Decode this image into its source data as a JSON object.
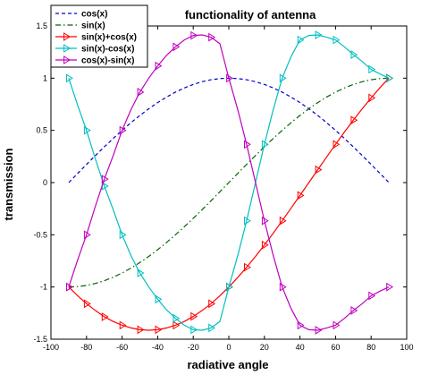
{
  "chart_data": {
    "type": "line",
    "title": "functionality of antenna",
    "xlabel": "radiative angle",
    "ylabel": "transmission",
    "xlim": [
      -100,
      100
    ],
    "ylim": [
      -1.5,
      1.5
    ],
    "xticks": [
      "-100",
      "-80",
      "-60",
      "-40",
      "-20",
      "0",
      "20",
      "40",
      "60",
      "80",
      "100"
    ],
    "yticks": [
      "1.5",
      "1",
      "0.5",
      "0",
      "-0.5",
      "-1",
      "-1.5"
    ],
    "xtick_values": [
      -100,
      -80,
      -60,
      -40,
      -20,
      0,
      20,
      40,
      60,
      80,
      100
    ],
    "ytick_values": [
      1.5,
      1,
      0.5,
      0,
      -0.5,
      -1,
      -1.5
    ],
    "grid": false,
    "legend_position": "top-left",
    "x": [
      -90,
      -85,
      -80,
      -75,
      -70,
      -65,
      -60,
      -55,
      -50,
      -45,
      -40,
      -35,
      -30,
      -25,
      -20,
      -15,
      -10,
      -5,
      0,
      5,
      10,
      15,
      20,
      25,
      30,
      35,
      40,
      45,
      50,
      55,
      60,
      65,
      70,
      75,
      80,
      85,
      90
    ],
    "series": [
      {
        "name": "cos(x)",
        "color": "#0000cc",
        "style": "dashed",
        "marker": "none",
        "values": [
          0.0,
          0.087,
          0.174,
          0.259,
          0.342,
          0.423,
          0.5,
          0.574,
          0.643,
          0.707,
          0.766,
          0.819,
          0.866,
          0.906,
          0.94,
          0.966,
          0.985,
          0.996,
          1.0,
          0.996,
          0.985,
          0.966,
          0.94,
          0.906,
          0.866,
          0.819,
          0.766,
          0.707,
          0.643,
          0.574,
          0.5,
          0.423,
          0.342,
          0.259,
          0.174,
          0.087,
          0.0
        ]
      },
      {
        "name": "sin(x)",
        "color": "#006400",
        "style": "dashdot",
        "marker": "none",
        "values": [
          -1.0,
          -0.996,
          -0.985,
          -0.966,
          -0.94,
          -0.906,
          -0.866,
          -0.819,
          -0.766,
          -0.707,
          -0.643,
          -0.574,
          -0.5,
          -0.423,
          -0.342,
          -0.259,
          -0.174,
          -0.087,
          0.0,
          0.087,
          0.174,
          0.259,
          0.342,
          0.423,
          0.5,
          0.574,
          0.643,
          0.707,
          0.766,
          0.819,
          0.866,
          0.906,
          0.94,
          0.966,
          0.985,
          0.996,
          1.0
        ]
      },
      {
        "name": "sin(x)+cos(x)",
        "color": "#ff0000",
        "style": "solid",
        "marker": "triangle-right",
        "values": [
          -1.0,
          -1.084,
          -1.16,
          -1.225,
          -1.286,
          -1.33,
          -1.366,
          -1.392,
          -1.409,
          -1.414,
          -1.409,
          -1.392,
          -1.366,
          -1.33,
          -1.282,
          -1.225,
          -1.16,
          -1.084,
          -1.0,
          -0.909,
          -0.811,
          -0.707,
          -0.598,
          -0.484,
          -0.366,
          -0.245,
          -0.123,
          0.0,
          0.123,
          0.245,
          0.366,
          0.484,
          0.598,
          0.707,
          0.811,
          0.909,
          1.0
        ]
      },
      {
        "name": "sin(x)-cos(x)",
        "color": "#00bfbf",
        "style": "solid",
        "marker": "triangle-right",
        "values": [
          1.0,
          0.741,
          0.5,
          0.225,
          -0.033,
          -0.259,
          -0.5,
          -0.7,
          -0.866,
          -1.0,
          -1.117,
          -1.219,
          -1.3,
          -1.366,
          -1.409,
          -1.414,
          -1.392,
          -1.33,
          -1.0,
          -0.7,
          -0.366,
          0.0,
          0.366,
          0.7,
          1.0,
          1.207,
          1.366,
          1.409,
          1.414,
          1.392,
          1.366,
          1.3,
          1.225,
          1.16,
          1.084,
          1.04,
          1.0
        ]
      },
      {
        "name": "cos(x)-sin(x)",
        "color": "#bf00bf",
        "style": "solid",
        "marker": "triangle-right",
        "values": [
          -1.0,
          -0.741,
          -0.5,
          -0.225,
          0.033,
          0.259,
          0.5,
          0.7,
          0.866,
          1.0,
          1.117,
          1.219,
          1.3,
          1.366,
          1.409,
          1.414,
          1.392,
          1.33,
          1.0,
          0.7,
          0.366,
          0.0,
          -0.366,
          -0.7,
          -1.0,
          -1.207,
          -1.366,
          -1.409,
          -1.414,
          -1.392,
          -1.366,
          -1.3,
          -1.225,
          -1.16,
          -1.084,
          -1.04,
          -1.0
        ]
      }
    ]
  }
}
